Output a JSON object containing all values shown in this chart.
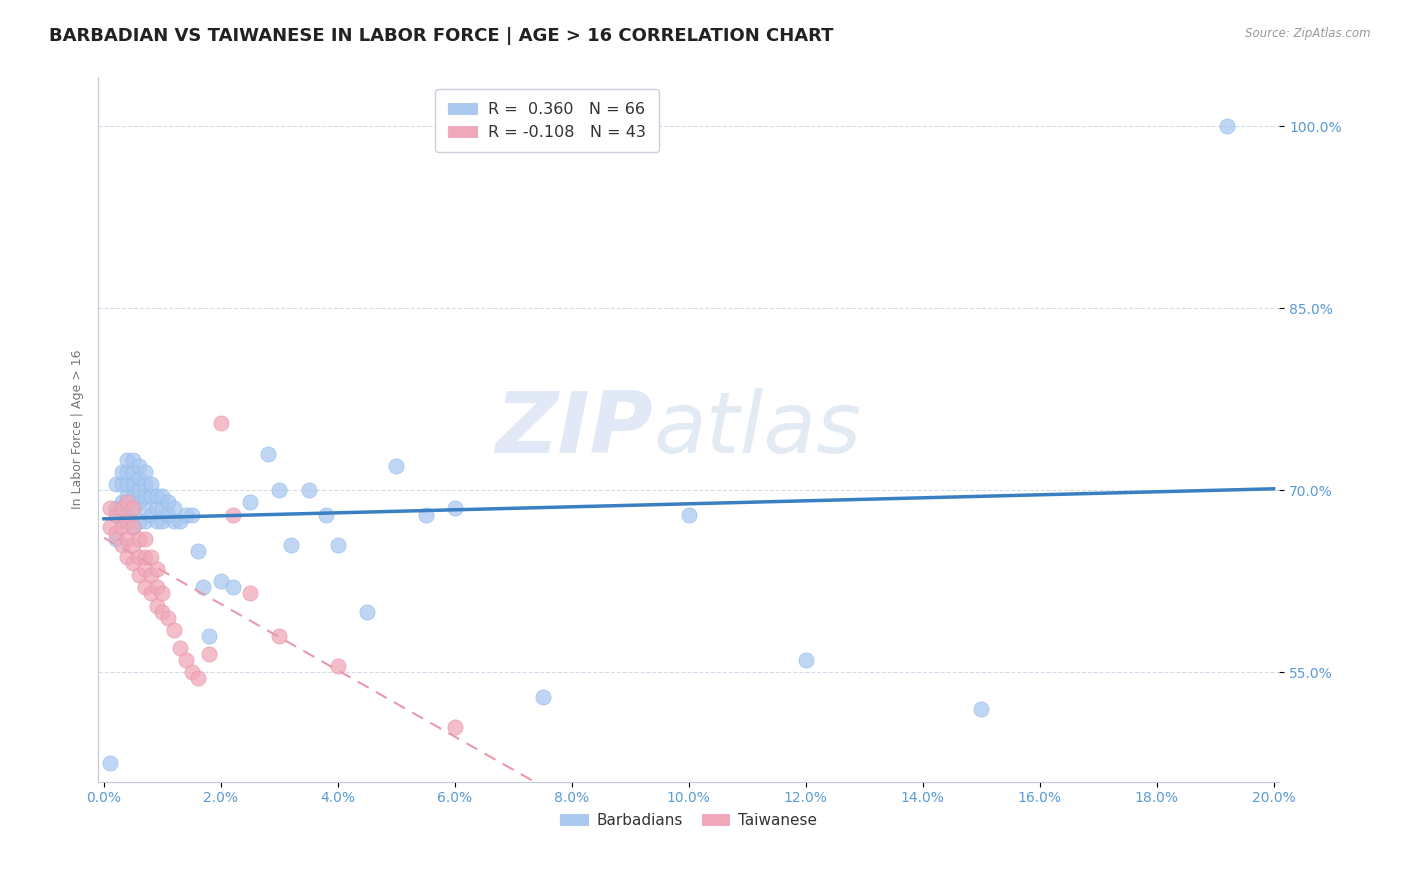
{
  "title": "BARBADIAN VS TAIWANESE IN LABOR FORCE | AGE > 16 CORRELATION CHART",
  "source": "Source: ZipAtlas.com",
  "xlabel_ticks": [
    "0.0%",
    "2.0%",
    "4.0%",
    "6.0%",
    "8.0%",
    "10.0%",
    "12.0%",
    "14.0%",
    "16.0%",
    "18.0%",
    "20.0%"
  ],
  "ylabel_right_ticks": [
    "55.0%",
    "70.0%",
    "85.0%",
    "100.0%"
  ],
  "ylabel_right_vals": [
    0.55,
    0.7,
    0.85,
    1.0
  ],
  "xlim": [
    -0.001,
    0.201
  ],
  "ylim": [
    0.46,
    1.04
  ],
  "barbadian_color": "#a8c8f0",
  "taiwanese_color": "#f0a8b8",
  "trend_barbadian_color": "#3a7fc1",
  "trend_taiwanese_color": "#e89aaa",
  "background_color": "#ffffff",
  "plot_bg_color": "#ffffff",
  "grid_color": "#d0d8e8",
  "title_fontsize": 13,
  "axis_label_fontsize": 9,
  "tick_fontsize": 10,
  "watermark_zip": "ZIP",
  "watermark_atlas": "atlas",
  "barbadian_x": [
    0.001,
    0.002,
    0.002,
    0.002,
    0.003,
    0.003,
    0.003,
    0.003,
    0.004,
    0.004,
    0.004,
    0.004,
    0.004,
    0.005,
    0.005,
    0.005,
    0.005,
    0.005,
    0.005,
    0.006,
    0.006,
    0.006,
    0.006,
    0.006,
    0.007,
    0.007,
    0.007,
    0.007,
    0.007,
    0.008,
    0.008,
    0.008,
    0.009,
    0.009,
    0.009,
    0.01,
    0.01,
    0.01,
    0.011,
    0.011,
    0.012,
    0.012,
    0.013,
    0.014,
    0.015,
    0.016,
    0.017,
    0.018,
    0.02,
    0.022,
    0.025,
    0.028,
    0.03,
    0.032,
    0.035,
    0.038,
    0.04,
    0.045,
    0.05,
    0.055,
    0.06,
    0.075,
    0.1,
    0.12,
    0.15,
    0.192
  ],
  "barbadian_y": [
    0.475,
    0.66,
    0.685,
    0.705,
    0.675,
    0.69,
    0.705,
    0.715,
    0.68,
    0.695,
    0.705,
    0.715,
    0.725,
    0.67,
    0.685,
    0.695,
    0.705,
    0.715,
    0.725,
    0.675,
    0.69,
    0.7,
    0.71,
    0.72,
    0.675,
    0.685,
    0.695,
    0.705,
    0.715,
    0.68,
    0.695,
    0.705,
    0.675,
    0.685,
    0.695,
    0.675,
    0.685,
    0.695,
    0.68,
    0.69,
    0.675,
    0.685,
    0.675,
    0.68,
    0.68,
    0.65,
    0.62,
    0.58,
    0.625,
    0.62,
    0.69,
    0.73,
    0.7,
    0.655,
    0.7,
    0.68,
    0.655,
    0.6,
    0.72,
    0.68,
    0.685,
    0.53,
    0.68,
    0.56,
    0.52,
    1.0
  ],
  "taiwanese_x": [
    0.001,
    0.001,
    0.002,
    0.002,
    0.003,
    0.003,
    0.003,
    0.004,
    0.004,
    0.004,
    0.004,
    0.005,
    0.005,
    0.005,
    0.005,
    0.006,
    0.006,
    0.006,
    0.007,
    0.007,
    0.007,
    0.007,
    0.008,
    0.008,
    0.008,
    0.009,
    0.009,
    0.009,
    0.01,
    0.01,
    0.011,
    0.012,
    0.013,
    0.014,
    0.015,
    0.016,
    0.018,
    0.02,
    0.022,
    0.025,
    0.03,
    0.04,
    0.06
  ],
  "taiwanese_y": [
    0.67,
    0.685,
    0.665,
    0.68,
    0.655,
    0.67,
    0.685,
    0.645,
    0.66,
    0.675,
    0.69,
    0.64,
    0.655,
    0.67,
    0.685,
    0.63,
    0.645,
    0.66,
    0.62,
    0.635,
    0.645,
    0.66,
    0.615,
    0.63,
    0.645,
    0.605,
    0.62,
    0.635,
    0.6,
    0.615,
    0.595,
    0.585,
    0.57,
    0.56,
    0.55,
    0.545,
    0.565,
    0.755,
    0.68,
    0.615,
    0.58,
    0.555,
    0.505
  ]
}
